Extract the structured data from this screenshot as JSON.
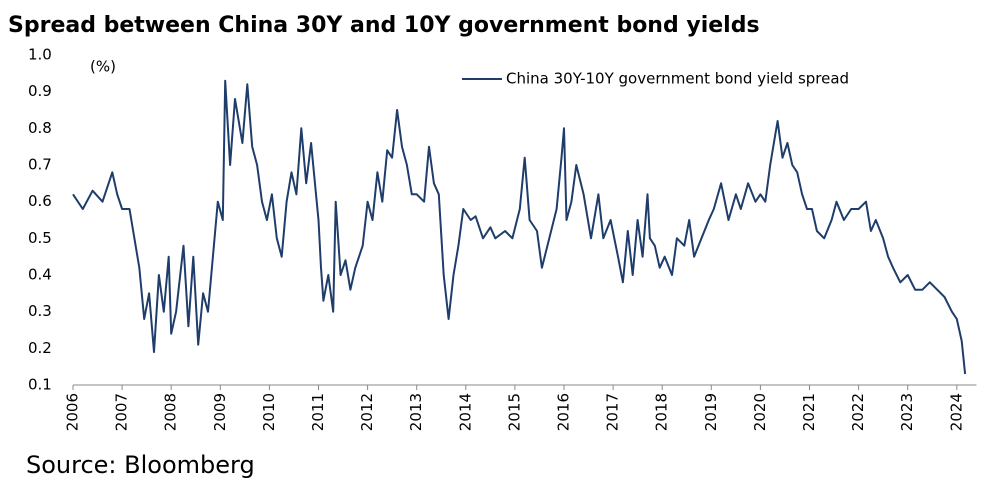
{
  "chart_data": {
    "type": "line",
    "title": "Spread between China 30Y and 10Y government bond yields",
    "y_unit": "(%)",
    "source": "Source: Bloomberg",
    "x": [
      2006.0,
      2006.2,
      2006.4,
      2006.6,
      2006.8,
      2006.9,
      2007.0,
      2007.15,
      2007.25,
      2007.35,
      2007.45,
      2007.55,
      2007.65,
      2007.75,
      2007.85,
      2007.95,
      2008.0,
      2008.1,
      2008.25,
      2008.35,
      2008.45,
      2008.55,
      2008.65,
      2008.75,
      2008.85,
      2008.95,
      2009.05,
      2009.1,
      2009.2,
      2009.3,
      2009.45,
      2009.55,
      2009.65,
      2009.75,
      2009.85,
      2009.95,
      2010.05,
      2010.15,
      2010.25,
      2010.35,
      2010.45,
      2010.55,
      2010.65,
      2010.75,
      2010.85,
      2010.95,
      2011.0,
      2011.05,
      2011.1,
      2011.2,
      2011.3,
      2011.35,
      2011.45,
      2011.55,
      2011.65,
      2011.75,
      2011.9,
      2012.0,
      2012.1,
      2012.2,
      2012.3,
      2012.4,
      2012.5,
      2012.6,
      2012.7,
      2012.8,
      2012.9,
      2013.0,
      2013.15,
      2013.25,
      2013.35,
      2013.45,
      2013.55,
      2013.65,
      2013.75,
      2013.85,
      2013.95,
      2014.1,
      2014.2,
      2014.35,
      2014.5,
      2014.6,
      2014.8,
      2014.95,
      2015.1,
      2015.2,
      2015.3,
      2015.45,
      2015.55,
      2015.7,
      2015.85,
      2015.95,
      2016.0,
      2016.05,
      2016.15,
      2016.25,
      2016.4,
      2016.55,
      2016.7,
      2016.8,
      2016.95,
      2017.1,
      2017.2,
      2017.3,
      2017.4,
      2017.5,
      2017.6,
      2017.7,
      2017.75,
      2017.85,
      2017.95,
      2018.05,
      2018.2,
      2018.3,
      2018.45,
      2018.55,
      2018.65,
      2018.8,
      2018.95,
      2019.05,
      2019.2,
      2019.35,
      2019.5,
      2019.6,
      2019.75,
      2019.9,
      2020.0,
      2020.1,
      2020.2,
      2020.3,
      2020.35,
      2020.45,
      2020.55,
      2020.65,
      2020.75,
      2020.85,
      2020.95,
      2021.05,
      2021.15,
      2021.3,
      2021.45,
      2021.55,
      2021.7,
      2021.85,
      2022.0,
      2022.15,
      2022.25,
      2022.35,
      2022.5,
      2022.6,
      2022.7,
      2022.85,
      2023.0,
      2023.15,
      2023.3,
      2023.45,
      2023.6,
      2023.75,
      2023.9,
      2024.0,
      2024.1,
      2024.17
    ],
    "series": [
      {
        "name": "China 30Y-10Y government bond yield spread",
        "color": "#1f3d6b",
        "values": [
          0.62,
          0.58,
          0.63,
          0.6,
          0.68,
          0.62,
          0.58,
          0.58,
          0.5,
          0.42,
          0.28,
          0.35,
          0.19,
          0.4,
          0.3,
          0.45,
          0.24,
          0.3,
          0.48,
          0.26,
          0.45,
          0.21,
          0.35,
          0.3,
          0.45,
          0.6,
          0.55,
          0.93,
          0.7,
          0.88,
          0.76,
          0.92,
          0.75,
          0.7,
          0.6,
          0.55,
          0.62,
          0.5,
          0.45,
          0.6,
          0.68,
          0.62,
          0.8,
          0.65,
          0.76,
          0.62,
          0.55,
          0.42,
          0.33,
          0.4,
          0.3,
          0.6,
          0.4,
          0.44,
          0.36,
          0.42,
          0.48,
          0.6,
          0.55,
          0.68,
          0.6,
          0.74,
          0.72,
          0.85,
          0.75,
          0.7,
          0.62,
          0.62,
          0.6,
          0.75,
          0.65,
          0.62,
          0.4,
          0.28,
          0.4,
          0.48,
          0.58,
          0.55,
          0.56,
          0.5,
          0.53,
          0.5,
          0.52,
          0.5,
          0.58,
          0.72,
          0.55,
          0.52,
          0.42,
          0.5,
          0.58,
          0.72,
          0.8,
          0.55,
          0.6,
          0.7,
          0.62,
          0.5,
          0.62,
          0.5,
          0.55,
          0.45,
          0.38,
          0.52,
          0.4,
          0.55,
          0.45,
          0.62,
          0.5,
          0.48,
          0.42,
          0.45,
          0.4,
          0.5,
          0.48,
          0.55,
          0.45,
          0.5,
          0.55,
          0.58,
          0.65,
          0.55,
          0.62,
          0.58,
          0.65,
          0.6,
          0.62,
          0.6,
          0.7,
          0.78,
          0.82,
          0.72,
          0.76,
          0.7,
          0.68,
          0.62,
          0.58,
          0.58,
          0.52,
          0.5,
          0.55,
          0.6,
          0.55,
          0.58,
          0.58,
          0.6,
          0.52,
          0.55,
          0.5,
          0.45,
          0.42,
          0.38,
          0.4,
          0.36,
          0.36,
          0.38,
          0.36,
          0.34,
          0.3,
          0.28,
          0.22,
          0.13
        ]
      }
    ],
    "xlim": [
      2006,
      2024.4
    ],
    "xticks": [
      2006,
      2007,
      2008,
      2009,
      2010,
      2011,
      2012,
      2013,
      2014,
      2015,
      2016,
      2017,
      2018,
      2019,
      2020,
      2021,
      2022,
      2023,
      2024
    ],
    "ylim": [
      0.1,
      1.0
    ],
    "yticks": [
      0.1,
      0.2,
      0.3,
      0.4,
      0.5,
      0.6,
      0.7,
      0.8,
      0.9,
      {
        "value": 1,
        "label": "1.0"
      }
    ],
    "grid": false,
    "legend": "top-right"
  }
}
